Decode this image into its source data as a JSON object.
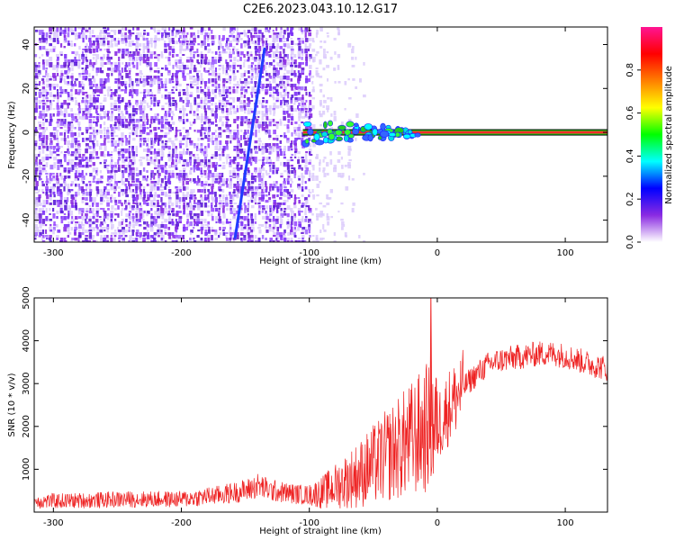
{
  "title": "C2E6.2023.043.10.12.G17",
  "chart_data": [
    {
      "type": "heatmap",
      "xlabel": "Height of straight line (km)",
      "ylabel": "Frequency (Hz)",
      "xlim": [
        -315,
        133
      ],
      "ylim": [
        -50,
        48
      ],
      "xticks": [
        -300,
        -200,
        -100,
        0,
        100
      ],
      "yticks": [
        -40,
        -20,
        0,
        20,
        40
      ],
      "colorbar": {
        "label": "Normalized spectral amplitude",
        "range": [
          0.0,
          1.0
        ],
        "ticks": [
          0.0,
          0.2,
          0.4,
          0.6,
          0.8
        ],
        "colormap": [
          "#ffffff",
          "#8a2be2",
          "#0000ff",
          "#00ffff",
          "#00ff00",
          "#ffff00",
          "#ff7f00",
          "#ff0000",
          "#ff1493"
        ]
      },
      "features": {
        "noise_region_x": [
          -315,
          -100
        ],
        "diagonal_line": {
          "x": [
            -158,
            -135
          ],
          "y": [
            -48,
            38
          ]
        },
        "carrier_line": {
          "y": 0,
          "x_start": -105,
          "x_end": 133
        }
      }
    },
    {
      "type": "line",
      "xlabel": "Height of straight line (km)",
      "ylabel": "SNR (10 * v/v)",
      "xlim": [
        -315,
        133
      ],
      "ylim": [
        0,
        5000
      ],
      "xticks": [
        -300,
        -200,
        -100,
        0,
        100
      ],
      "yticks": [
        1000,
        2000,
        3000,
        4000,
        5000
      ],
      "color": "#ee2222",
      "series": [
        {
          "x": [
            -315,
            -280,
            -240,
            -200,
            -170,
            -150,
            -140,
            -130,
            -110,
            -100,
            -90,
            -80,
            -70,
            -60,
            -50,
            -40,
            -30,
            -20,
            -10,
            -5,
            0,
            10,
            20,
            30,
            40,
            50,
            60,
            70,
            80,
            90,
            100,
            110,
            120,
            133
          ],
          "y": [
            250,
            270,
            300,
            300,
            400,
            500,
            620,
            500,
            420,
            400,
            460,
            600,
            750,
            900,
            1100,
            1300,
            1500,
            1700,
            1900,
            2100,
            2000,
            2500,
            2900,
            3200,
            3450,
            3550,
            3600,
            3650,
            3700,
            3700,
            3650,
            3550,
            3450,
            3350
          ]
        }
      ]
    }
  ]
}
